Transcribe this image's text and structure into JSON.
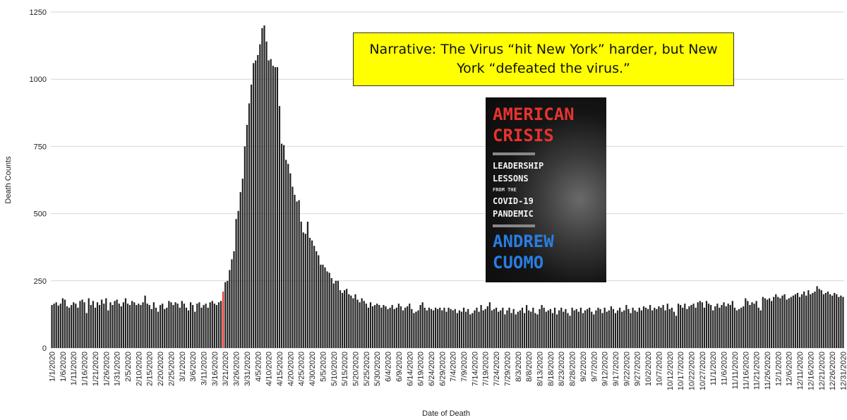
{
  "chart_data": {
    "type": "bar",
    "y_label": "Death Counts",
    "x_label": "Date of Death",
    "ylim": [
      0,
      1250
    ],
    "yticks": [
      0,
      250,
      500,
      750,
      1000,
      1250
    ],
    "grid": true,
    "color": "#222222",
    "highlight": {
      "index": 79,
      "color": "#e8312f"
    },
    "annotation": "Narrative: The Virus “hit New York” harder, but New York “defeated the virus.”",
    "categories": [
      "1/1/2020",
      null,
      null,
      null,
      null,
      "1/6/2020",
      null,
      null,
      null,
      null,
      "1/11/2020",
      null,
      null,
      null,
      null,
      "1/16/2020",
      null,
      null,
      null,
      null,
      "1/21/2020",
      null,
      null,
      null,
      null,
      "1/26/2020",
      null,
      null,
      null,
      null,
      "1/31/2020",
      null,
      null,
      null,
      null,
      "2/5/2020",
      null,
      null,
      null,
      null,
      "2/10/2020",
      null,
      null,
      null,
      null,
      "2/15/2020",
      null,
      null,
      null,
      null,
      "2/20/2020",
      null,
      null,
      null,
      null,
      "2/25/2020",
      null,
      null,
      null,
      null,
      "3/1/2020",
      null,
      null,
      null,
      null,
      "3/6/2020",
      null,
      null,
      null,
      null,
      "3/11/2020",
      null,
      null,
      null,
      null,
      "3/16/2020",
      null,
      null,
      null,
      null,
      "3/21/2020",
      null,
      null,
      null,
      null,
      "3/26/2020",
      null,
      null,
      null,
      null,
      "3/31/2020",
      null,
      null,
      null,
      null,
      "4/5/2020",
      null,
      null,
      null,
      null,
      "4/10/2020",
      null,
      null,
      null,
      null,
      "4/15/2020",
      null,
      null,
      null,
      null,
      "4/20/2020",
      null,
      null,
      null,
      null,
      "4/25/2020",
      null,
      null,
      null,
      null,
      "4/30/2020",
      null,
      null,
      null,
      null,
      "5/5/2020",
      null,
      null,
      null,
      null,
      "5/10/2020",
      null,
      null,
      null,
      null,
      "5/15/2020",
      null,
      null,
      null,
      null,
      "5/20/2020",
      null,
      null,
      null,
      null,
      "5/25/2020",
      null,
      null,
      null,
      null,
      "5/30/2020",
      null,
      null,
      null,
      null,
      "6/4/2020",
      null,
      null,
      null,
      null,
      "6/9/2020",
      null,
      null,
      null,
      null,
      "6/14/2020",
      null,
      null,
      null,
      null,
      "6/19/2020",
      null,
      null,
      null,
      null,
      "6/24/2020",
      null,
      null,
      null,
      null,
      "6/29/2020",
      null,
      null,
      null,
      null,
      "7/4/2020",
      null,
      null,
      null,
      null,
      "7/9/2020",
      null,
      null,
      null,
      null,
      "7/14/2020",
      null,
      null,
      null,
      null,
      "7/19/2020",
      null,
      null,
      null,
      null,
      "7/24/2020",
      null,
      null,
      null,
      null,
      "7/29/2020",
      null,
      null,
      null,
      null,
      "8/3/2020",
      null,
      null,
      null,
      null,
      "8/8/2020",
      null,
      null,
      null,
      null,
      "8/13/2020",
      null,
      null,
      null,
      null,
      "8/18/2020",
      null,
      null,
      null,
      null,
      "8/23/2020",
      null,
      null,
      null,
      null,
      "8/28/2020",
      null,
      null,
      null,
      null,
      "9/2/2020",
      null,
      null,
      null,
      null,
      "9/7/2020",
      null,
      null,
      null,
      null,
      "9/12/2020",
      null,
      null,
      null,
      null,
      "9/17/2020",
      null,
      null,
      null,
      null,
      "9/22/2020",
      null,
      null,
      null,
      null,
      "9/27/2020",
      null,
      null,
      null,
      null,
      "10/2/2020",
      null,
      null,
      null,
      null,
      "10/7/2020",
      null,
      null,
      null,
      null,
      "10/12/2020",
      null,
      null,
      null,
      null,
      "10/17/2020",
      null,
      null,
      null,
      null,
      "10/22/2020",
      null,
      null,
      null,
      null,
      "10/27/2020",
      null,
      null,
      null,
      null,
      "11/1/2020",
      null,
      null,
      null,
      null,
      "11/6/2020",
      null,
      null,
      null,
      null,
      "11/11/2020",
      null,
      null,
      null,
      null,
      "11/16/2020",
      null,
      null,
      null,
      null,
      "11/21/2020",
      null,
      null,
      null,
      null,
      "11/26/2020",
      null,
      null,
      null,
      null,
      "12/1/2020",
      null,
      null,
      null,
      null,
      "12/6/2020",
      null,
      null,
      null,
      null,
      "12/11/2020",
      null,
      null,
      null,
      null,
      "12/16/2020",
      null,
      null,
      null,
      null,
      "12/21/2020",
      null,
      null,
      null,
      null,
      "12/26/2020",
      null,
      null,
      null,
      null,
      "12/31/2020"
    ],
    "values": [
      160,
      165,
      170,
      158,
      165,
      185,
      180,
      155,
      150,
      160,
      170,
      165,
      150,
      175,
      180,
      170,
      130,
      185,
      160,
      175,
      150,
      170,
      160,
      180,
      165,
      185,
      140,
      170,
      160,
      175,
      180,
      165,
      155,
      170,
      185,
      165,
      160,
      175,
      170,
      160,
      165,
      160,
      170,
      195,
      165,
      160,
      145,
      170,
      150,
      135,
      160,
      165,
      145,
      150,
      175,
      170,
      160,
      170,
      165,
      150,
      175,
      165,
      150,
      140,
      170,
      160,
      135,
      165,
      170,
      150,
      160,
      165,
      150,
      170,
      175,
      165,
      160,
      170,
      175,
      210,
      245,
      250,
      290,
      330,
      360,
      480,
      510,
      580,
      630,
      750,
      830,
      910,
      980,
      1060,
      1070,
      1090,
      1130,
      1190,
      1200,
      1140,
      1070,
      1075,
      1050,
      1045,
      1045,
      900,
      760,
      755,
      700,
      685,
      650,
      600,
      570,
      545,
      550,
      470,
      430,
      425,
      470,
      410,
      400,
      380,
      360,
      345,
      310,
      310,
      300,
      285,
      280,
      260,
      240,
      250,
      250,
      215,
      205,
      215,
      220,
      200,
      195,
      185,
      200,
      180,
      170,
      185,
      175,
      165,
      150,
      170,
      155,
      160,
      165,
      160,
      150,
      160,
      155,
      145,
      150,
      160,
      145,
      150,
      165,
      155,
      140,
      150,
      155,
      165,
      145,
      130,
      135,
      140,
      160,
      170,
      150,
      140,
      150,
      145,
      140,
      150,
      145,
      150,
      140,
      150,
      135,
      150,
      145,
      140,
      145,
      130,
      140,
      135,
      150,
      135,
      145,
      125,
      130,
      140,
      150,
      135,
      160,
      140,
      145,
      155,
      170,
      140,
      145,
      150,
      135,
      140,
      150,
      125,
      140,
      150,
      130,
      145,
      125,
      135,
      140,
      150,
      130,
      160,
      140,
      135,
      150,
      130,
      125,
      145,
      160,
      150,
      135,
      140,
      145,
      130,
      150,
      125,
      140,
      150,
      135,
      145,
      130,
      120,
      150,
      140,
      145,
      135,
      150,
      130,
      140,
      145,
      150,
      135,
      125,
      140,
      150,
      145,
      130,
      150,
      135,
      140,
      155,
      145,
      130,
      140,
      150,
      135,
      140,
      160,
      145,
      130,
      150,
      140,
      135,
      150,
      140,
      155,
      150,
      145,
      160,
      140,
      150,
      145,
      155,
      150,
      160,
      140,
      165,
      145,
      150,
      135,
      120,
      165,
      160,
      150,
      165,
      145,
      155,
      160,
      165,
      150,
      170,
      175,
      170,
      150,
      175,
      165,
      160,
      140,
      155,
      165,
      150,
      160,
      170,
      155,
      165,
      160,
      175,
      150,
      140,
      145,
      150,
      155,
      185,
      175,
      160,
      170,
      165,
      175,
      150,
      140,
      190,
      185,
      180,
      185,
      175,
      190,
      200,
      190,
      185,
      195,
      200,
      180,
      185,
      190,
      195,
      200,
      205,
      190,
      200,
      210,
      195,
      215,
      200,
      205,
      210,
      230,
      220,
      215,
      200,
      205,
      210,
      200,
      195,
      205,
      200,
      190,
      195,
      190
    ]
  },
  "book": {
    "title_lines": [
      "AMERICAN",
      "CRISIS"
    ],
    "subtitle_lines": [
      "LEADERSHIP",
      "LESSONS",
      "FROM THE",
      "COVID-19",
      "PANDEMIC"
    ],
    "author_lines": [
      "ANDREW",
      "CUOMO"
    ]
  }
}
